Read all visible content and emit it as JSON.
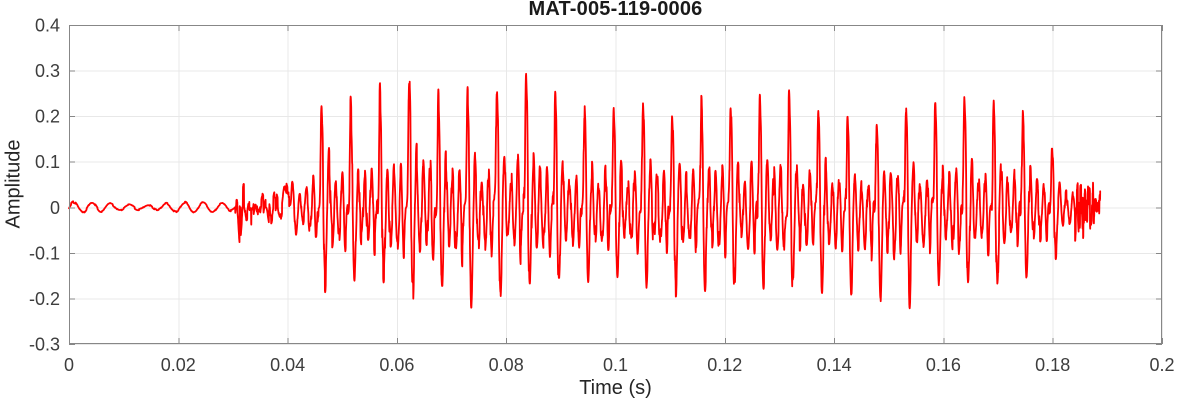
{
  "figure": {
    "title": "MAT-005-119-0006",
    "x_axis_label": "Time (s)",
    "y_axis_label": "Amplitude"
  },
  "style": {
    "background": "#ffffff",
    "line_color": "#ff0000",
    "axis_box_color": "#878787",
    "grid_color": "#e8e8e8",
    "tick_label_color": "#3d3d3d",
    "label_color": "#262626",
    "title_color": "#1a1a1a"
  },
  "chart_data": {
    "type": "line",
    "title": "MAT-005-119-0006",
    "xlabel": "Time (s)",
    "ylabel": "Amplitude",
    "xlim": [
      0,
      0.2
    ],
    "ylim": [
      -0.3,
      0.4
    ],
    "grid": true,
    "legend": null,
    "x_ticks": [
      0,
      0.02,
      0.04,
      0.06,
      0.08,
      0.1,
      0.12,
      0.14,
      0.16,
      0.18,
      0.2
    ],
    "x_tick_labels": [
      "0",
      "0.02",
      "0.04",
      "0.06",
      "0.08",
      "0.1",
      "0.12",
      "0.14",
      "0.16",
      "0.18",
      "0.2"
    ],
    "y_ticks": [
      -0.3,
      -0.2,
      -0.1,
      0,
      0.1,
      0.2,
      0.3,
      0.4
    ],
    "y_tick_labels": [
      "-0.3",
      "-0.2",
      "-0.1",
      "0",
      "0.1",
      "0.2",
      "0.3",
      "0.4"
    ],
    "series": [
      {
        "name": "waveform",
        "color": "#ff0000",
        "description": "Speech-like acoustic waveform: quiet ~295 Hz ripple (about ±0.01) from 0 to 0.030 s; low-level noise burst (about ±0.04) from 0.030 to 0.040 s; voiced periodic pulse train (~187 Hz pitch) from 0.040 to 0.184 s with positive peak envelope 0.20-0.31 (maxima ~0.31 at t=0.063, ~0.29 at t=0.048 and t=0.084) and troughs down to -0.22 near t=0.151; short noisy tail decaying to zero, signal ends at t=0.189 s",
        "synthesis": {
          "sample_rate": 30000,
          "t_end": 0.1887,
          "ripple": {
            "t_end": 0.0304,
            "freq_hz": 295,
            "amp": 0.011
          },
          "noise_burst": {
            "t_start": 0.0304,
            "t_end": 0.0403,
            "amp": 0.026,
            "tone_hz": 750,
            "onset_spike_t": 0.0312
          },
          "voiced": {
            "t_start": 0.0403,
            "t_end": 0.184,
            "pitch_hz": 187,
            "jitter": 0.1,
            "pulse_bumps": [
              [
                0.1,
                0.035,
                1.0
              ],
              [
                0.145,
                0.025,
                0.55
              ],
              [
                0.23,
                0.055,
                -0.85
              ],
              [
                0.36,
                0.05,
                0.42
              ],
              [
                0.47,
                0.06,
                -0.35
              ],
              [
                0.585,
                0.05,
                0.3
              ],
              [
                0.7,
                0.055,
                -0.38
              ],
              [
                0.82,
                0.045,
                0.35
              ],
              [
                0.92,
                0.04,
                -0.45
              ]
            ]
          },
          "tail": {
            "t_start": 0.184,
            "t_end": 0.1887,
            "amp_start": 0.07,
            "amp_end": 0.038,
            "tone_hz": 1400
          },
          "envelope_t_pos_neg": [
            [
              0.0405,
              0.045,
              -0.035
            ],
            [
              0.042,
              0.085,
              -0.07
            ],
            [
              0.0437,
              0.13,
              -0.1
            ],
            [
              0.046,
              0.2,
              -0.17
            ],
            [
              0.048,
              0.285,
              -0.16
            ],
            [
              0.051,
              0.225,
              -0.15
            ],
            [
              0.053,
              0.22,
              -0.155
            ],
            [
              0.058,
              0.26,
              -0.155
            ],
            [
              0.063,
              0.3,
              -0.195
            ],
            [
              0.068,
              0.25,
              -0.19
            ],
            [
              0.071,
              0.245,
              -0.21
            ],
            [
              0.0735,
              0.25,
              -0.205
            ],
            [
              0.079,
              0.26,
              -0.185
            ],
            [
              0.084,
              0.29,
              -0.19
            ],
            [
              0.089,
              0.24,
              -0.175
            ],
            [
              0.095,
              0.215,
              -0.16
            ],
            [
              0.1,
              0.21,
              -0.17
            ],
            [
              0.106,
              0.23,
              -0.17
            ],
            [
              0.111,
              0.21,
              -0.18
            ],
            [
              0.117,
              0.232,
              -0.17
            ],
            [
              0.1226,
              0.235,
              -0.17
            ],
            [
              0.1283,
              0.248,
              -0.17
            ],
            [
              0.134,
              0.248,
              -0.175
            ],
            [
              0.14,
              0.213,
              -0.18
            ],
            [
              0.1455,
              0.18,
              -0.195
            ],
            [
              0.1512,
              0.21,
              -0.215
            ],
            [
              0.1569,
              0.221,
              -0.185
            ],
            [
              0.1627,
              0.226,
              -0.18
            ],
            [
              0.168,
              0.216,
              -0.175
            ],
            [
              0.1738,
              0.212,
              -0.16
            ],
            [
              0.179,
              0.15,
              -0.125
            ],
            [
              0.184,
              0.088,
              -0.07
            ]
          ]
        }
      }
    ]
  }
}
